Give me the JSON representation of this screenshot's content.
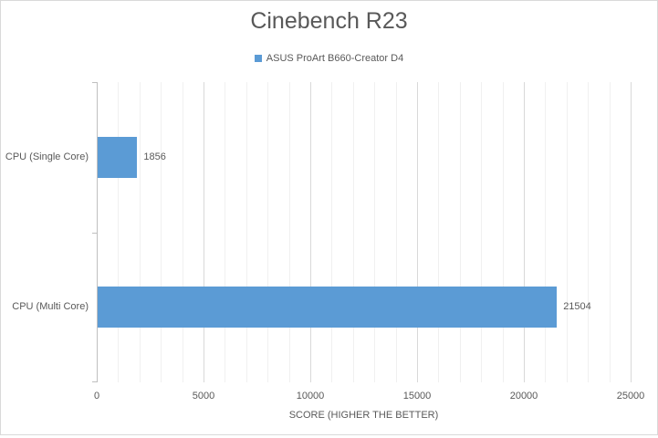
{
  "chart_data": {
    "type": "bar",
    "orientation": "horizontal",
    "title": "Cinebench R23",
    "xlabel": "SCORE (HIGHER THE BETTER)",
    "categories": [
      "CPU (Single Core)",
      "CPU (Multi Core)"
    ],
    "series": [
      {
        "name": "ASUS ProArt B660-Creator D4",
        "color": "#5B9BD5",
        "values": [
          1856,
          21504
        ]
      }
    ],
    "data_labels": [
      "1856",
      "21504"
    ],
    "axis": {
      "min": 0,
      "max": 25000,
      "major_unit": 5000,
      "minor_unit": 1000,
      "tick_labels": [
        "0",
        "5000",
        "10000",
        "15000",
        "20000",
        "25000"
      ]
    },
    "legend_position": "top",
    "grid": {
      "vertical_major": true,
      "vertical_minor": true
    }
  },
  "colors": {
    "bar": "#5B9BD5",
    "text": "#595959",
    "gridline_minor": "#F0F0F0",
    "gridline_major": "#D9D9D9",
    "axis_line": "#BFBFBF",
    "chart_border": "#D9D9D9"
  }
}
